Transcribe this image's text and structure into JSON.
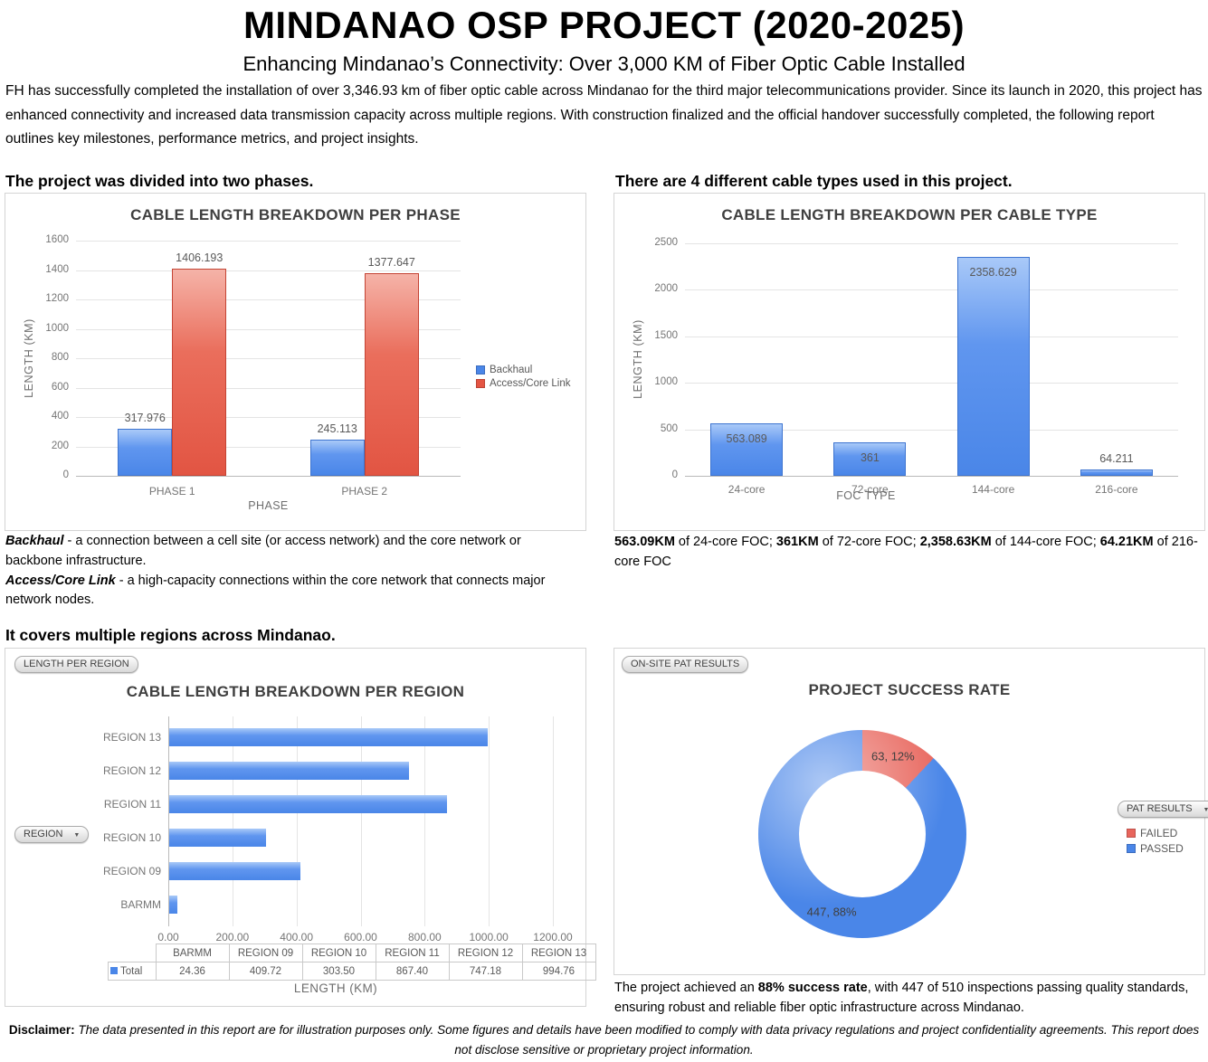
{
  "header": {
    "title": "MINDANAO OSP PROJECT (2020-2025)",
    "subtitle": "Enhancing Mindanao’s Connectivity: Over 3,000 KM of Fiber Optic Cable Installed",
    "intro": "FH has successfully completed the installation of over 3,346.93 km of fiber optic cable across Mindanao for the third major telecommunications provider. Since its launch in 2020, this project has enhanced connectivity and increased data transmission capacity across multiple regions. With construction finalized and the official handover successfully completed, the following report outlines key milestones, performance metrics, and project insights."
  },
  "sections": {
    "phase_heading": "The project was divided into two phases.",
    "cable_heading": "There are 4 different cable types used in this project.",
    "region_heading": "It covers multiple regions across Mindanao."
  },
  "colors": {
    "blue": "#4A86E8",
    "red": "#E45543",
    "grid": "#E4E4E4",
    "axis_text": "#757575"
  },
  "chart_data": [
    {
      "id": "phase",
      "type": "bar",
      "title": "CABLE LENGTH BREAKDOWN PER PHASE",
      "categories": [
        "PHASE 1",
        "PHASE 2"
      ],
      "series": [
        {
          "name": "Backhaul",
          "color": "#4A86E8",
          "values": [
            317.976,
            245.113
          ]
        },
        {
          "name": "Access/Core Link",
          "color": "#E45543",
          "values": [
            1406.193,
            1377.647
          ]
        }
      ],
      "xlabel": "PHASE",
      "ylabel": "LENGTH (KM)",
      "ylim": [
        0,
        1600
      ],
      "ytick": 200,
      "grid": true,
      "legend_position": "right"
    },
    {
      "id": "cable_type",
      "type": "bar",
      "title": "CABLE LENGTH BREAKDOWN PER CABLE TYPE",
      "categories": [
        "24-core",
        "72-core",
        "144-core",
        "216-core"
      ],
      "values": [
        563.089,
        361,
        2358.629,
        64.211
      ],
      "xlabel": "FOC TYPE",
      "ylabel": "LENGTH (KM)",
      "ylim": [
        0,
        2500
      ],
      "ytick": 500,
      "grid": true,
      "bar_color": "#4A86E8"
    },
    {
      "id": "region",
      "type": "bar",
      "orientation": "horizontal",
      "title": "CABLE LENGTH BREAKDOWN PER REGION",
      "categories": [
        "REGION 13",
        "REGION 12",
        "REGION 11",
        "REGION 10",
        "REGION 09",
        "BARMM"
      ],
      "values": [
        994.76,
        747.18,
        867.4,
        303.5,
        409.72,
        24.36
      ],
      "xlabel": "LENGTH (KM)",
      "xlim": [
        0,
        1200
      ],
      "xtick": 200,
      "tick_labels": [
        "0.00",
        "200.00",
        "400.00",
        "600.00",
        "800.00",
        "1000.00",
        "1200.00"
      ],
      "filter_button": "LENGTH PER REGION",
      "axis_button": "REGION",
      "bar_color": "#4A86E8",
      "table": {
        "columns": [
          "BARMM",
          "REGION 09",
          "REGION 10",
          "REGION 11",
          "REGION 12",
          "REGION 13"
        ],
        "row_label": "Total",
        "values": [
          "24.36",
          "409.72",
          "303.50",
          "867.40",
          "747.18",
          "994.76"
        ]
      }
    },
    {
      "id": "success_rate",
      "type": "pie",
      "donut": true,
      "title": "PROJECT SUCCESS RATE",
      "filter_button": "ON-SITE PAT RESULTS",
      "legend_button": "PAT RESULTS",
      "slices": [
        {
          "label": "FAILED",
          "value": 63,
          "pct": 12,
          "color": "#E8655C",
          "data_label": "63, 12%"
        },
        {
          "label": "PASSED",
          "value": 447,
          "pct": 88,
          "color": "#4A86E8",
          "data_label": "447, 88%"
        }
      ],
      "legend": [
        "FAILED",
        "PASSED"
      ],
      "legend_position": "right"
    }
  ],
  "captions": {
    "backhaul_def": [
      {
        "t": "Backhaul",
        "b": true,
        "i": true
      },
      {
        "t": " - a connection between a cell site (or access network) and the core network or backbone infrastructure."
      }
    ],
    "core_def": [
      {
        "t": "Access/Core Link",
        "b": true,
        "i": true
      },
      {
        "t": " - a high-capacity connections within the core network that connects major network nodes."
      }
    ],
    "foc": [
      {
        "t": "563.09KM",
        "b": true
      },
      {
        "t": " of 24-core FOC; "
      },
      {
        "t": "361KM",
        "b": true
      },
      {
        "t": " of 72-core FOC; "
      },
      {
        "t": "2,358.63KM",
        "b": true
      },
      {
        "t": " of 144-core FOC; "
      },
      {
        "t": "64.21KM",
        "b": true
      },
      {
        "t": " of 216-core FOC"
      }
    ],
    "success": [
      {
        "t": "The project achieved an "
      },
      {
        "t": "88% success rate",
        "b": true
      },
      {
        "t": ", with 447 of 510 inspections passing quality standards, ensuring robust and reliable fiber optic infrastructure across Mindanao."
      }
    ],
    "disclaimer": [
      {
        "t": "Disclaimer:",
        "b": true
      },
      {
        "t": " The data presented in this report are for illustration purposes only. Some figures and details have been modified to comply with data privacy regulations and project confidentiality agreements. This report does not disclose sensitive or proprietary project information.",
        "i": true
      }
    ]
  }
}
